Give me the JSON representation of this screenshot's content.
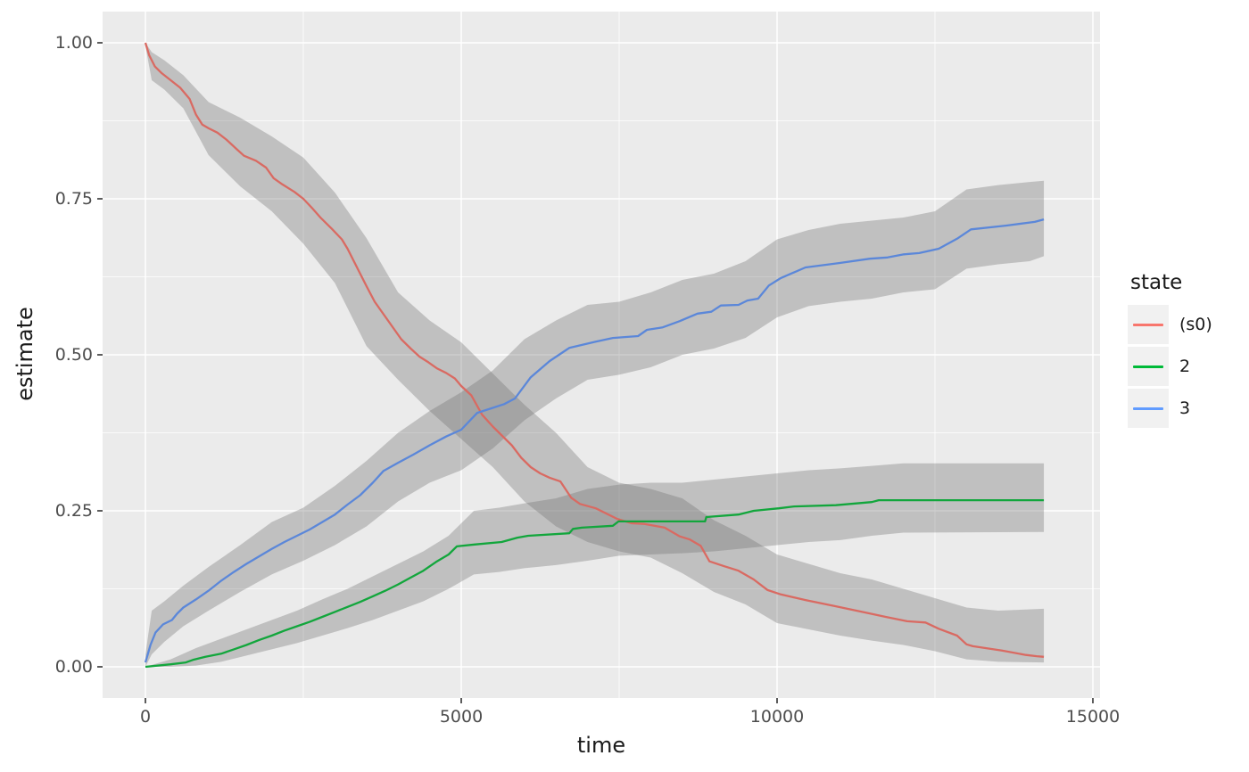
{
  "chart_data": {
    "type": "line",
    "title": "",
    "xlabel": "time",
    "ylabel": "estimate",
    "xlim": [
      0,
      15000
    ],
    "ylim": [
      0.0,
      1.0
    ],
    "grid": "on",
    "x_ticks": [
      0,
      5000,
      10000,
      15000
    ],
    "x_tick_labels": [
      "0",
      "5000",
      "10000",
      "15000"
    ],
    "x_minor_ticks": [
      2500,
      7500,
      12500
    ],
    "y_ticks": [
      0.0,
      0.25,
      0.5,
      0.75,
      1.0
    ],
    "y_tick_labels": [
      "0.00",
      "0.25",
      "0.50",
      "0.75",
      "1.00"
    ],
    "y_minor_ticks": [
      0.125,
      0.375,
      0.625,
      0.875
    ],
    "colors": {
      "panel_background": "#EBEBEB",
      "grid_major": "#FFFFFF",
      "grid_minor": "#FFFFFF",
      "confidence_band": "rgba(105,105,105,0.33)",
      "tick_mark": "#333333",
      "tick_text": "#4D4D4D",
      "axis_title_text": "#1A1A1A",
      "legend_key_background": "#F1F1F1"
    },
    "legend": {
      "title": "state",
      "position": "right",
      "entries": [
        {
          "label": "(s0)",
          "key_color": "#F8766D"
        },
        {
          "label": "2",
          "key_color": "#00BA38"
        },
        {
          "label": "3",
          "key_color": "#619CFF"
        }
      ]
    },
    "series": [
      {
        "name": "(s0)",
        "color": "#D96A62",
        "x": [
          0,
          60,
          150,
          250,
          400,
          550,
          700,
          800,
          900,
          1000,
          1140,
          1280,
          1440,
          1560,
          1750,
          1910,
          2030,
          2170,
          2360,
          2500,
          2640,
          2780,
          2950,
          3110,
          3200,
          3350,
          3500,
          3630,
          3770,
          3910,
          4050,
          4200,
          4340,
          4480,
          4620,
          4760,
          4900,
          5000,
          5160,
          5330,
          5500,
          5650,
          5800,
          5950,
          6100,
          6250,
          6400,
          6570,
          6740,
          6880,
          7130,
          7470,
          7700,
          7900,
          8220,
          8460,
          8620,
          8790,
          8930,
          9170,
          9390,
          9630,
          9850,
          10060,
          10450,
          10930,
          11440,
          11720,
          12060,
          12350,
          12560,
          12850,
          13000,
          13100,
          13560,
          13940,
          14110,
          14224
        ],
        "y": [
          1.0,
          0.98,
          0.962,
          0.952,
          0.94,
          0.928,
          0.91,
          0.885,
          0.869,
          0.863,
          0.856,
          0.845,
          0.83,
          0.819,
          0.811,
          0.8,
          0.783,
          0.773,
          0.761,
          0.75,
          0.735,
          0.719,
          0.702,
          0.685,
          0.67,
          0.64,
          0.61,
          0.585,
          0.565,
          0.545,
          0.525,
          0.51,
          0.497,
          0.488,
          0.478,
          0.471,
          0.462,
          0.45,
          0.435,
          0.404,
          0.385,
          0.37,
          0.355,
          0.335,
          0.32,
          0.31,
          0.303,
          0.297,
          0.271,
          0.261,
          0.254,
          0.237,
          0.23,
          0.229,
          0.223,
          0.209,
          0.204,
          0.194,
          0.169,
          0.161,
          0.154,
          0.14,
          0.123,
          0.116,
          0.107,
          0.097,
          0.086,
          0.08,
          0.073,
          0.071,
          0.061,
          0.05,
          0.036,
          0.033,
          0.026,
          0.019,
          0.017,
          0.016
        ],
        "band": {
          "x": [
            0,
            100,
            300,
            600,
            1000,
            1500,
            2000,
            2500,
            3000,
            3500,
            4000,
            4500,
            5000,
            5500,
            6000,
            6500,
            7000,
            7500,
            8000,
            8500,
            9000,
            9500,
            10000,
            10500,
            11000,
            11500,
            12000,
            12500,
            13000,
            13500,
            14224
          ],
          "lo": [
            0.995,
            0.94,
            0.925,
            0.895,
            0.82,
            0.77,
            0.73,
            0.678,
            0.615,
            0.514,
            0.46,
            0.41,
            0.365,
            0.32,
            0.265,
            0.225,
            0.2,
            0.185,
            0.175,
            0.15,
            0.12,
            0.1,
            0.07,
            0.06,
            0.05,
            0.042,
            0.035,
            0.025,
            0.012,
            0.008,
            0.007
          ],
          "hi": [
            1.0,
            0.985,
            0.972,
            0.948,
            0.905,
            0.88,
            0.85,
            0.816,
            0.76,
            0.687,
            0.6,
            0.555,
            0.52,
            0.47,
            0.42,
            0.375,
            0.32,
            0.295,
            0.285,
            0.27,
            0.235,
            0.21,
            0.18,
            0.165,
            0.15,
            0.14,
            0.125,
            0.11,
            0.095,
            0.09,
            0.093
          ]
        }
      },
      {
        "name": "2",
        "color": "#12A63C",
        "x": [
          0,
          400,
          640,
          750,
          950,
          1200,
          1400,
          1600,
          1800,
          2000,
          2200,
          2400,
          2600,
          2800,
          3000,
          3200,
          3400,
          3600,
          3800,
          4000,
          4200,
          4400,
          4600,
          4800,
          4930,
          5210,
          5640,
          5890,
          6060,
          6710,
          6770,
          6910,
          7400,
          7490,
          8860,
          8880,
          9390,
          9630,
          10030,
          10270,
          10930,
          11500,
          11610,
          14224
        ],
        "y": [
          0.0,
          0.004,
          0.007,
          0.011,
          0.016,
          0.021,
          0.028,
          0.035,
          0.043,
          0.05,
          0.058,
          0.065,
          0.072,
          0.08,
          0.088,
          0.096,
          0.104,
          0.113,
          0.122,
          0.132,
          0.143,
          0.154,
          0.168,
          0.18,
          0.193,
          0.196,
          0.2,
          0.207,
          0.21,
          0.214,
          0.221,
          0.223,
          0.226,
          0.233,
          0.233,
          0.24,
          0.244,
          0.25,
          0.254,
          0.257,
          0.259,
          0.264,
          0.267,
          0.267
        ],
        "band": {
          "x": [
            0,
            400,
            800,
            1200,
            1600,
            2000,
            2400,
            2800,
            3200,
            3600,
            4000,
            4400,
            4800,
            5200,
            5600,
            6000,
            6500,
            7000,
            7500,
            8000,
            8500,
            9000,
            9500,
            10000,
            10500,
            11000,
            11500,
            12000,
            14224
          ],
          "lo": [
            0.0,
            0.0,
            0.002,
            0.008,
            0.018,
            0.028,
            0.038,
            0.05,
            0.062,
            0.075,
            0.09,
            0.105,
            0.125,
            0.148,
            0.152,
            0.158,
            0.163,
            0.17,
            0.178,
            0.18,
            0.182,
            0.185,
            0.19,
            0.195,
            0.2,
            0.203,
            0.21,
            0.215,
            0.216
          ],
          "hi": [
            0.0,
            0.012,
            0.03,
            0.045,
            0.06,
            0.075,
            0.09,
            0.108,
            0.125,
            0.145,
            0.165,
            0.185,
            0.21,
            0.25,
            0.255,
            0.262,
            0.27,
            0.285,
            0.292,
            0.295,
            0.295,
            0.3,
            0.305,
            0.31,
            0.315,
            0.318,
            0.322,
            0.326,
            0.326
          ]
        }
      },
      {
        "name": "3",
        "color": "#5B87D9",
        "x": [
          0,
          80,
          160,
          280,
          420,
          500,
          600,
          800,
          1000,
          1200,
          1400,
          1600,
          1800,
          2000,
          2200,
          2400,
          2600,
          2800,
          3000,
          3200,
          3400,
          3600,
          3770,
          4000,
          4240,
          4500,
          4760,
          5000,
          5254,
          5500,
          5680,
          5850,
          6100,
          6400,
          6710,
          7130,
          7400,
          7800,
          7940,
          8190,
          8460,
          8740,
          8960,
          9110,
          9390,
          9530,
          9700,
          9870,
          10060,
          10450,
          10980,
          11470,
          11750,
          12010,
          12250,
          12560,
          12850,
          13070,
          13620,
          14080,
          14224
        ],
        "y": [
          0.007,
          0.035,
          0.055,
          0.068,
          0.075,
          0.085,
          0.095,
          0.108,
          0.122,
          0.138,
          0.152,
          0.165,
          0.177,
          0.189,
          0.2,
          0.21,
          0.22,
          0.232,
          0.244,
          0.26,
          0.275,
          0.295,
          0.314,
          0.327,
          0.34,
          0.355,
          0.369,
          0.38,
          0.407,
          0.415,
          0.421,
          0.43,
          0.464,
          0.49,
          0.511,
          0.521,
          0.527,
          0.53,
          0.54,
          0.544,
          0.554,
          0.566,
          0.569,
          0.579,
          0.58,
          0.587,
          0.59,
          0.611,
          0.623,
          0.64,
          0.647,
          0.654,
          0.656,
          0.661,
          0.663,
          0.67,
          0.686,
          0.701,
          0.707,
          0.713,
          0.717
        ],
        "band": {
          "x": [
            0,
            100,
            300,
            600,
            1000,
            1500,
            2000,
            2500,
            3000,
            3500,
            4000,
            4500,
            5000,
            5500,
            6000,
            6500,
            7000,
            7500,
            8000,
            8500,
            9000,
            9500,
            10000,
            10500,
            11000,
            11500,
            12000,
            12500,
            13000,
            13500,
            14000,
            14224
          ],
          "lo": [
            0.0,
            0.02,
            0.04,
            0.065,
            0.09,
            0.12,
            0.148,
            0.17,
            0.195,
            0.225,
            0.265,
            0.295,
            0.315,
            0.35,
            0.395,
            0.43,
            0.46,
            0.468,
            0.48,
            0.5,
            0.51,
            0.527,
            0.56,
            0.578,
            0.585,
            0.59,
            0.6,
            0.605,
            0.638,
            0.645,
            0.65,
            0.658
          ],
          "hi": [
            0.02,
            0.09,
            0.105,
            0.13,
            0.16,
            0.195,
            0.232,
            0.255,
            0.29,
            0.33,
            0.375,
            0.41,
            0.44,
            0.475,
            0.525,
            0.555,
            0.58,
            0.585,
            0.6,
            0.62,
            0.63,
            0.65,
            0.685,
            0.7,
            0.71,
            0.715,
            0.72,
            0.73,
            0.765,
            0.772,
            0.777,
            0.779
          ]
        }
      }
    ]
  }
}
